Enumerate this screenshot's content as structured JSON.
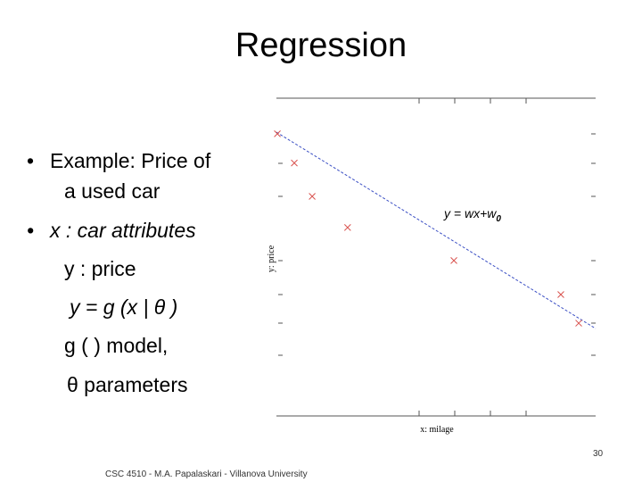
{
  "title": "Regression",
  "bullets": [
    "Example: Price of",
    "a used car",
    "x : car attributes",
    "y : price",
    "y = g (x | θ )",
    "g ( ) model,",
    "θ parameters"
  ],
  "footer": "CSC 4510 - M.A. Papalaskari - Villanova University",
  "page_number": "30",
  "chart_data": {
    "type": "scatter",
    "xlabel": "x: milage",
    "ylabel": "y: price",
    "annotation": "y = wx+w",
    "annotation_subscript": "0",
    "x": [
      0.03,
      0.56,
      1.12,
      2.23,
      5.56,
      8.91,
      9.47
    ],
    "values": [
      8.88,
      7.96,
      6.91,
      5.93,
      4.89,
      3.82,
      2.92
    ],
    "color": "#d9534f",
    "line_color": "#3b4fc4",
    "fit": {
      "slope": -0.618,
      "intercept": 8.93
    },
    "xlim": [
      0,
      10
    ],
    "ylim": [
      0,
      10
    ]
  }
}
